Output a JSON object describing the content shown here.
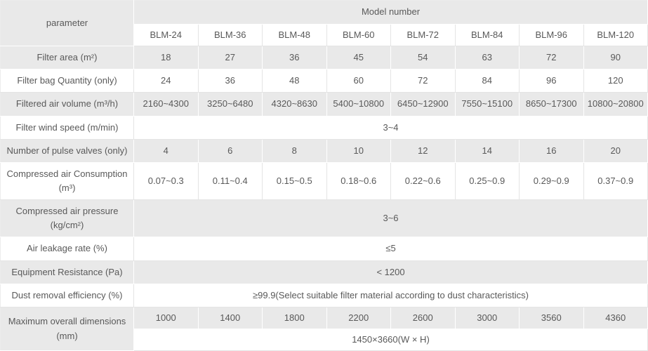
{
  "table": {
    "header": {
      "parameter_label": "parameter",
      "model_number_label": "Model number",
      "models": [
        "BLM-24",
        "BLM-36",
        "BLM-48",
        "BLM-60",
        "BLM-72",
        "BLM-84",
        "BLM-96",
        "BLM-120"
      ]
    },
    "rows": [
      {
        "label": "Filter area (m²)",
        "cells": [
          "18",
          "27",
          "36",
          "45",
          "54",
          "63",
          "72",
          "90"
        ]
      },
      {
        "label": "Filter bag Quantity (only)",
        "cells": [
          "24",
          "36",
          "48",
          "60",
          "72",
          "84",
          "96",
          "120"
        ]
      },
      {
        "label": "Filtered air volume (m³/h)",
        "cells": [
          "2160~4300",
          "3250~6480",
          "4320~8630",
          "5400~10800",
          "6450~12900",
          "7550~15100",
          "8650~17300",
          "10800~20800"
        ]
      },
      {
        "label": "Filter wind speed (m/min)",
        "colspan": 8,
        "cells": [
          "3~4"
        ]
      },
      {
        "label": "Number of pulse valves (only)",
        "cells": [
          "4",
          "6",
          "8",
          "10",
          "12",
          "14",
          "16",
          "20"
        ]
      },
      {
        "label": "Compressed air Consumption (m³)",
        "cells": [
          "0.07~0.3",
          "0.11~0.4",
          "0.15~0.5",
          "0.18~0.6",
          "0.22~0.6",
          "0.25~0.9",
          "0.29~0.9",
          "0.37~0.9"
        ]
      },
      {
        "label": "Compressed air pressure (kg/cm²)",
        "colspan": 8,
        "cells": [
          "3~6"
        ]
      },
      {
        "label": "Air leakage rate (%)",
        "colspan": 8,
        "cells": [
          "≤5"
        ]
      },
      {
        "label": "Equipment Resistance (Pa)",
        "colspan": 8,
        "cells": [
          "< 1200"
        ]
      },
      {
        "label": "Dust removal efficiency (%)",
        "colspan": 8,
        "cells": [
          "≥99.9(Select suitable filter material according to dust characteristics)"
        ]
      },
      {
        "label": "Maximum overall dimensions (mm)",
        "rowspan": 2,
        "cells": [
          "1000",
          "1400",
          "1800",
          "2200",
          "2600",
          "3000",
          "3560",
          "4360"
        ]
      },
      {
        "colspan": 8,
        "cells": [
          "1450×3660(W × H)"
        ]
      }
    ],
    "colors": {
      "shaded_row_bg": "#e9e9e9",
      "text": "#595959",
      "grid_line_on_white": "#e4e4e4",
      "grid_line_on_gray": "#ffffff"
    }
  }
}
